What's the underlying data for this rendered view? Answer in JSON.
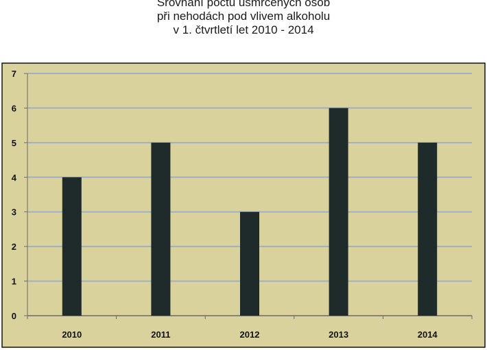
{
  "chart_data": {
    "type": "bar",
    "title_lines": [
      "Srovnání počtu usmrcených osob",
      "při nehodách pod vlivem alkoholu",
      "v 1. čtvrtletí let 2010 - 2014"
    ],
    "categories": [
      "2010",
      "2011",
      "2012",
      "2013",
      "2014"
    ],
    "values": [
      4,
      5,
      3,
      6,
      5
    ],
    "ylim": [
      0,
      7
    ],
    "yticks": [
      "0",
      "1",
      "2",
      "3",
      "4",
      "5",
      "6",
      "7"
    ],
    "xlabel": "",
    "ylabel": "",
    "grid": true,
    "legend": "none",
    "colors": {
      "plot_background": "#d9d29c",
      "bar": "#1f2a2a",
      "gridline": "#9fb0c2",
      "frame": "#111111"
    }
  }
}
